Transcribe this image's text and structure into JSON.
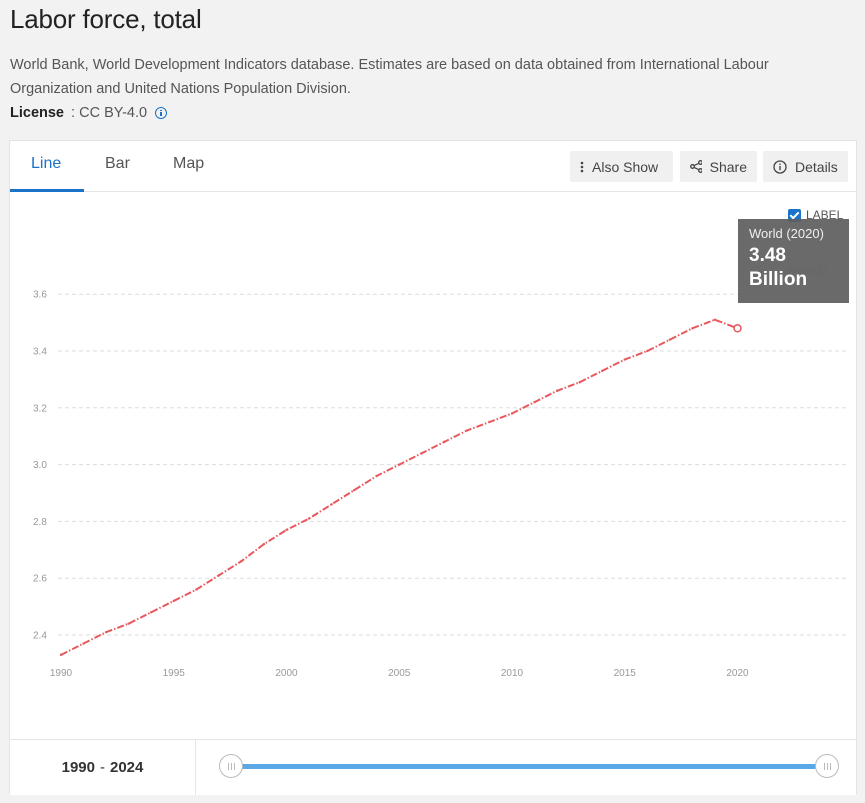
{
  "page": {
    "title": "Labor force, total",
    "source": "World Bank, World Development Indicators database. Estimates are based on data obtained from International Labour Organization and United Nations Population Division.",
    "license_label": "License",
    "license_sep": " : ",
    "license_value": "CC BY-4.0"
  },
  "tabs": [
    {
      "label": "Line",
      "active": true
    },
    {
      "label": "Bar",
      "active": false
    },
    {
      "label": "Map",
      "active": false
    }
  ],
  "toolbar": {
    "also_show": "Also Show",
    "share": "Share",
    "details": "Details"
  },
  "label_toggle": {
    "label": "LABEL",
    "checked": true
  },
  "series_label": "WORLD",
  "tooltip": {
    "label": "World (2020)",
    "value_line1": "3.48",
    "value_line2": "Billion"
  },
  "footer": {
    "range_start": "1990",
    "range_sep": "-",
    "range_end": "2024"
  },
  "colors": {
    "line": "#e8585d",
    "accent": "#1a73c8",
    "slider": "#5aa9e6"
  },
  "icons": {
    "also_show": "vertical-dots-icon",
    "share": "share-icon",
    "details": "info-circle-icon"
  },
  "chart_data": {
    "type": "line",
    "title": "",
    "xlabel": "",
    "ylabel": "",
    "xlim": [
      1990,
      2024
    ],
    "ylim": [
      2.3,
      3.7
    ],
    "x_ticks": [
      1990,
      1995,
      2000,
      2005,
      2010,
      2015,
      2020
    ],
    "y_ticks": [
      2.4,
      2.6,
      2.8,
      3.0,
      3.2,
      3.4,
      3.6
    ],
    "grid": "horizontal dashed",
    "series": [
      {
        "name": "World",
        "color": "#e8585d",
        "x": [
          1990,
          1991,
          1992,
          1993,
          1994,
          1995,
          1996,
          1997,
          1998,
          1999,
          2000,
          2001,
          2002,
          2003,
          2004,
          2005,
          2006,
          2007,
          2008,
          2009,
          2010,
          2011,
          2012,
          2013,
          2014,
          2015,
          2016,
          2017,
          2018,
          2019,
          2020
        ],
        "y": [
          2.33,
          2.37,
          2.41,
          2.44,
          2.48,
          2.52,
          2.56,
          2.61,
          2.66,
          2.72,
          2.77,
          2.81,
          2.86,
          2.91,
          2.96,
          3.0,
          3.04,
          3.08,
          3.12,
          3.15,
          3.18,
          3.22,
          3.26,
          3.29,
          3.33,
          3.37,
          3.4,
          3.44,
          3.48,
          3.51,
          3.48
        ]
      }
    ],
    "highlight": {
      "x": 2020,
      "y": 3.48
    }
  }
}
